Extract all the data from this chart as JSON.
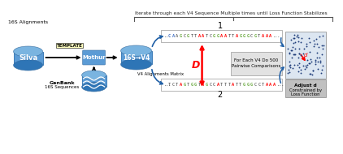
{
  "title": "Iterate through each V4 Sequence Multiple times until Loss Function Stabilizes",
  "silva_label": "Silva",
  "mothur_label": "Mothur",
  "v4_label": "16S→V4",
  "genbank_label1": "GenBank",
  "genbank_label2": "16S Sequences",
  "alignments_label": "16S Alignments",
  "template_label": "TEMPLATE",
  "v4_matrix_label": "V4 Alignments Matrix",
  "comp_label1": "For Each V4 Do 500",
  "comp_label2": "Pairwise Comparisons",
  "adjust_label1": "Adjust d",
  "adjust_label2": "Constrained by",
  "adjust_label3": "Loss Function",
  "D_label": "D",
  "d_label": "d",
  "label1": "1",
  "label2": "2",
  "seq1_chars": [
    "...",
    "C",
    "A",
    "A",
    "G",
    "C",
    "G",
    "T",
    "T",
    "A",
    "A",
    "T",
    "C",
    "G",
    "G",
    "A",
    "A",
    "T",
    "T",
    "A",
    "G",
    "G",
    "G",
    "C",
    "G",
    "T",
    "A",
    "A",
    "A",
    "..."
  ],
  "seq1_colors": [
    "#333333",
    "#4472c4",
    "#4472c4",
    "#333333",
    "#70ad47",
    "#333333",
    "#70ad47",
    "#333333",
    "#333333",
    "#ff0000",
    "#ff0000",
    "#333333",
    "#333333",
    "#70ad47",
    "#70ad47",
    "#ff0000",
    "#ff0000",
    "#333333",
    "#333333",
    "#ff0000",
    "#70ad47",
    "#70ad47",
    "#70ad47",
    "#333333",
    "#70ad47",
    "#333333",
    "#ff0000",
    "#ff0000",
    "#ff0000",
    "#333333"
  ],
  "seq2_chars": [
    "...",
    "T",
    "C",
    "T",
    "A",
    "G",
    "T",
    "G",
    "G",
    "T",
    "A",
    "G",
    "C",
    "C",
    "A",
    "T",
    "T",
    "T",
    "A",
    "T",
    "T",
    "G",
    "G",
    "G",
    "C",
    "C",
    "T",
    "A",
    "A",
    "A",
    "..."
  ],
  "seq2_colors": [
    "#333333",
    "#333333",
    "#333333",
    "#333333",
    "#ff0000",
    "#70ad47",
    "#333333",
    "#70ad47",
    "#70ad47",
    "#333333",
    "#ff0000",
    "#70ad47",
    "#333333",
    "#333333",
    "#ff0000",
    "#333333",
    "#333333",
    "#333333",
    "#ff0000",
    "#333333",
    "#333333",
    "#70ad47",
    "#70ad47",
    "#70ad47",
    "#333333",
    "#333333",
    "#333333",
    "#ff0000",
    "#ff0000",
    "#ff0000",
    "#333333"
  ],
  "cyl_color": "#5b9bd5",
  "cyl_top": "#7ab4e0",
  "cyl_bot": "#2e75b6",
  "scatter_dot_color": "#1f3d7a",
  "scatter_bg": "#dce6f1",
  "arrow_color": "#1f5fa6",
  "red_arrow_color": "#ff0000",
  "bg_color": "#ffffff",
  "bracket_color": "#555555",
  "comp_box_color": "#e2e2e2",
  "adj_box_color": "#c0c0c0"
}
